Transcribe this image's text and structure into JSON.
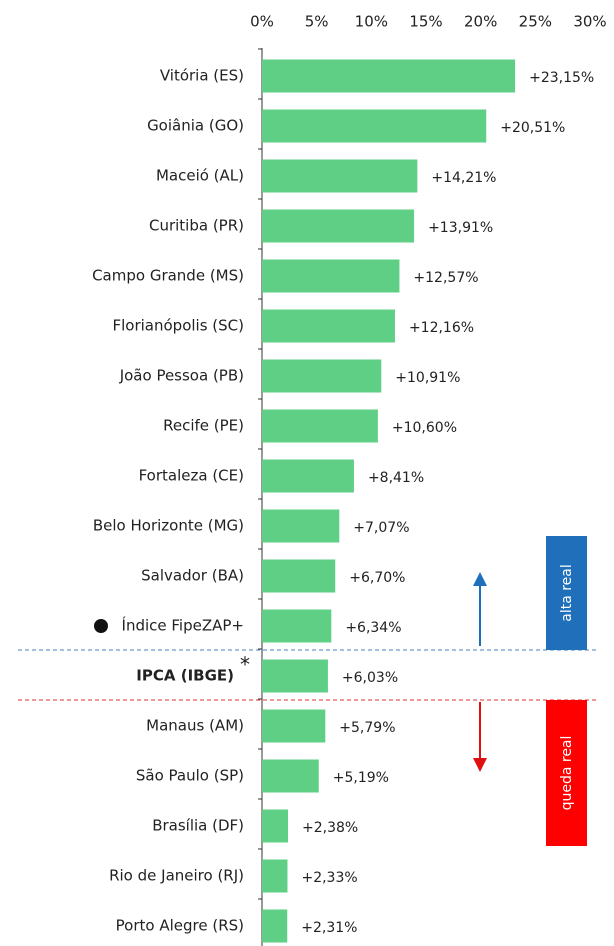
{
  "chart_data": {
    "type": "bar",
    "orientation": "horizontal",
    "categories": [
      "Vitória (ES)",
      "Goiânia (GO)",
      "Maceió (AL)",
      "Curitiba (PR)",
      "Campo Grande (MS)",
      "Florianópolis (SC)",
      "João Pessoa (PB)",
      "Recife (PE)",
      "Fortaleza (CE)",
      "Belo Horizonte (MG)",
      "Salvador (BA)",
      "Índice FipeZAP+",
      "IPCA (IBGE)",
      "Manaus (AM)",
      "São Paulo (SP)",
      "Brasília (DF)",
      "Rio de Janeiro (RJ)",
      "Porto Alegre (RS)"
    ],
    "values": [
      23.15,
      20.51,
      14.21,
      13.91,
      12.57,
      12.16,
      10.91,
      10.6,
      8.41,
      7.07,
      6.7,
      6.34,
      6.03,
      5.79,
      5.19,
      2.38,
      2.33,
      2.31
    ],
    "value_labels": [
      "+23,15%",
      "+20,51%",
      "+14,21%",
      "+13,91%",
      "+12,57%",
      "+12,16%",
      "+10,91%",
      "+10,60%",
      "+8,41%",
      "+7,07%",
      "+6,70%",
      "+6,34%",
      "+6,03%",
      "+5,79%",
      "+5,19%",
      "+2,38%",
      "+2,33%",
      "+2,31%"
    ],
    "color": "#5fcf86",
    "xlim": [
      0,
      30
    ],
    "xticks": [
      {
        "value": 0,
        "label": "0%"
      },
      {
        "value": 5,
        "label": "5%"
      },
      {
        "value": 10,
        "label": "10%"
      },
      {
        "value": 15,
        "label": "15%"
      },
      {
        "value": 20,
        "label": "20%"
      },
      {
        "value": 25,
        "label": "25%"
      },
      {
        "value": 30,
        "label": "30%"
      }
    ],
    "annotations": {
      "asterisk": "*",
      "above": "alta real",
      "below": "queda real"
    }
  }
}
